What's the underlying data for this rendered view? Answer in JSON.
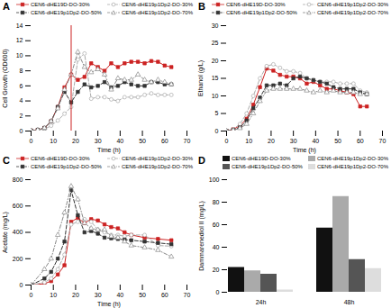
{
  "chart_data": [
    {
      "type": "line",
      "title": "A",
      "xlabel": "Time (h)",
      "ylabel": "Cell Growth (OD600)",
      "xlim": [
        0,
        70
      ],
      "xticks": [
        0,
        10,
        20,
        30,
        40,
        50,
        60,
        70
      ],
      "ylim": [
        0,
        14
      ],
      "yticks": [
        0,
        2,
        4,
        6,
        8,
        10,
        12,
        14
      ],
      "grid": false,
      "legend": "top",
      "reference_lines": [
        {
          "x": 18,
          "color": "#cc2222"
        }
      ],
      "x": [
        0,
        3,
        6,
        9,
        12,
        15,
        18,
        21,
        24,
        27,
        30,
        33,
        36,
        39,
        42,
        45,
        48,
        51,
        54,
        57,
        60,
        63
      ],
      "series": [
        {
          "name": "CEN6-dHE19D-DO-30%",
          "color": "#cc2222",
          "line_style": "solid",
          "marker": "square",
          "values": [
            0.05,
            0.15,
            0.4,
            1.3,
            3.2,
            5.8,
            7.5,
            6.8,
            7.2,
            9.0,
            8.5,
            8.0,
            9.0,
            8.5,
            9.0,
            9.2,
            9.2,
            9.0,
            9.3,
            9.2,
            8.7,
            8.5
          ]
        },
        {
          "name": "CEN6-dHE19p1Dp2-DO-30%",
          "color": "#aaaaaa",
          "line_style": "dashed",
          "marker": "circle-open",
          "values": [
            0.05,
            0.1,
            0.25,
            0.7,
            1.4,
            2.3,
            3.2,
            9.5,
            10.3,
            4.3,
            4.5,
            4.5,
            4.2,
            4.0,
            4.5,
            4.5,
            4.5,
            4.8,
            5.0,
            4.8,
            4.8,
            4.8
          ]
        },
        {
          "name": "CEN6-dHE19p1Dp2-DO-50%",
          "color": "#333333",
          "line_style": "dashed",
          "marker": "square",
          "values": [
            0.05,
            0.15,
            0.4,
            1.3,
            3.2,
            5.2,
            3.8,
            5.2,
            6.2,
            5.8,
            6.0,
            6.5,
            5.8,
            6.0,
            6.5,
            6.2,
            6.0,
            6.0,
            6.5,
            6.5,
            6.2,
            6.2
          ]
        },
        {
          "name": "CEN6-dHE19p1Dp2-DO-70%",
          "color": "#888888",
          "line_style": "dashdot",
          "marker": "triangle-open",
          "values": [
            0.05,
            0.15,
            0.4,
            1.3,
            3.0,
            5.5,
            7.5,
            10.5,
            8.5,
            7.8,
            8.2,
            7.5,
            5.5,
            7.0,
            6.8,
            6.8,
            7.5,
            6.8,
            6.5,
            6.8,
            6.5,
            6.2
          ]
        }
      ]
    },
    {
      "type": "line",
      "title": "B",
      "xlabel": "Time (h)",
      "ylabel": "Ethanol (g/L)",
      "xlim": [
        0,
        70
      ],
      "xticks": [
        0,
        10,
        20,
        30,
        40,
        50,
        60,
        70
      ],
      "ylim": [
        0,
        30
      ],
      "yticks": [
        0,
        5,
        10,
        15,
        20,
        25,
        30
      ],
      "grid": false,
      "legend": "top",
      "x": [
        0,
        3,
        6,
        9,
        12,
        15,
        18,
        21,
        24,
        27,
        30,
        33,
        36,
        39,
        42,
        45,
        48,
        51,
        54,
        57,
        60,
        63
      ],
      "series": [
        {
          "name": "CEN6-dHE19D-DO-30%",
          "color": "#cc2222",
          "line_style": "solid",
          "marker": "square",
          "values": [
            0,
            0.5,
            1.5,
            3.5,
            7.5,
            12.5,
            17.8,
            17.2,
            16.0,
            15.5,
            15.5,
            15.0,
            13.5,
            14.0,
            13.0,
            12.0,
            12.0,
            11.5,
            11.0,
            10.5,
            7.0,
            7.0
          ]
        },
        {
          "name": "CEN6-dHE19p1Dp2-DO-30%",
          "color": "#aaaaaa",
          "line_style": "dashed",
          "marker": "circle-open",
          "values": [
            0,
            0.5,
            2.0,
            5.0,
            10.0,
            15.0,
            18.5,
            19.0,
            18.0,
            17.0,
            17.0,
            16.5,
            15.0,
            14.5,
            14.0,
            14.0,
            14.0,
            13.5,
            13.5,
            13.5,
            11.5,
            11.0
          ]
        },
        {
          "name": "CEN6-dHE19p1Dp2-DO-50%",
          "color": "#333333",
          "line_style": "dashed",
          "marker": "square",
          "values": [
            0,
            0.3,
            1.0,
            3.0,
            6.5,
            9.5,
            13.0,
            13.0,
            13.5,
            13.0,
            15.0,
            15.5,
            15.0,
            14.5,
            14.0,
            13.5,
            12.5,
            12.0,
            12.0,
            12.0,
            11.0,
            10.5
          ]
        },
        {
          "name": "CEN6-dHE19p1Dp2-DO-70%",
          "color": "#888888",
          "line_style": "dashdot",
          "marker": "triangle-open",
          "values": [
            0,
            0.2,
            0.8,
            2.0,
            5.0,
            8.5,
            11.5,
            12.0,
            12.0,
            12.0,
            12.0,
            12.0,
            11.5,
            11.0,
            11.5,
            11.0,
            11.5,
            11.0,
            11.0,
            11.0,
            10.5,
            10.5
          ]
        }
      ]
    },
    {
      "type": "line",
      "title": "C",
      "xlabel": "Time (h)",
      "ylabel": "Acetate (mg/L)",
      "xlim": [
        0,
        70
      ],
      "xticks": [
        0,
        10,
        20,
        30,
        40,
        50,
        60,
        70
      ],
      "ylim": [
        0,
        800
      ],
      "yticks": [
        0,
        200,
        400,
        600,
        800
      ],
      "grid": false,
      "legend": "top",
      "x": [
        0,
        6,
        9,
        12,
        15,
        18,
        21,
        24,
        27,
        30,
        33,
        36,
        39,
        42,
        45,
        51,
        57,
        63
      ],
      "series": [
        {
          "name": "CEN6-dHE19D-DO-30%",
          "color": "#cc2222",
          "line_style": "solid",
          "marker": "square",
          "values": [
            0,
            10,
            30,
            80,
            150,
            480,
            510,
            470,
            500,
            490,
            460,
            440,
            430,
            400,
            380,
            360,
            350,
            340
          ]
        },
        {
          "name": "CEN6-dHE19p1Dp2-DO-30%",
          "color": "#aaaaaa",
          "line_style": "dashed",
          "marker": "circle-open",
          "values": [
            0,
            20,
            50,
            120,
            230,
            460,
            480,
            500,
            480,
            420,
            400,
            380,
            380,
            370,
            380,
            380,
            300,
            295
          ]
        },
        {
          "name": "CEN6-dHE19p1Dp2-DO-50%",
          "color": "#333333",
          "line_style": "dashed",
          "marker": "square",
          "values": [
            0,
            50,
            100,
            200,
            330,
            720,
            530,
            400,
            410,
            390,
            360,
            355,
            350,
            345,
            340,
            330,
            320,
            310
          ]
        },
        {
          "name": "CEN6-dHE19p1Dp2-DO-70%",
          "color": "#888888",
          "line_style": "dashdot",
          "marker": "triangle-open",
          "values": [
            0,
            120,
            200,
            380,
            550,
            750,
            650,
            470,
            430,
            420,
            420,
            370,
            360,
            330,
            300,
            285,
            265,
            215
          ]
        }
      ]
    },
    {
      "type": "bar",
      "title": "D",
      "ylabel": "Dammarenediol II (mg/L)",
      "ylim": [
        0,
        100
      ],
      "yticks": [
        0,
        20,
        40,
        60,
        80,
        100
      ],
      "grid": false,
      "legend": "top",
      "categories": [
        "24h",
        "48h"
      ],
      "series": [
        {
          "name": "CEN6-dHE19D-DO-30%",
          "color": "#111111",
          "values": [
            22,
            57
          ]
        },
        {
          "name": "CEN6-dHE19p1Dp2-DO-30%",
          "color": "#aaaaaa",
          "values": [
            19,
            85
          ]
        },
        {
          "name": "CEN6-dHE19p1Dp2-DO-50%",
          "color": "#555555",
          "values": [
            16,
            29
          ]
        },
        {
          "name": "CEN6-dHE19p1Dp2-DO-70%",
          "color": "#dddddd",
          "values": [
            2,
            21
          ]
        }
      ]
    }
  ]
}
